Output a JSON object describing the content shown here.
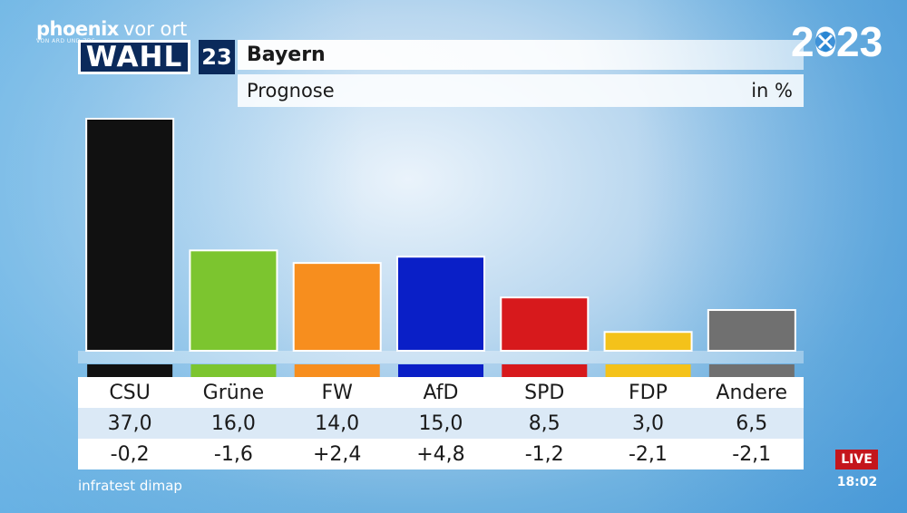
{
  "channel": {
    "brand": "phoenix",
    "brand_suffix": "vor ort",
    "tagline": "VON ARD UND ZDF"
  },
  "badge": {
    "wahl": "WAHL",
    "number": "23"
  },
  "header": {
    "title": "Bayern",
    "subtitle": "Prognose",
    "unit": "in %"
  },
  "year_logo": {
    "text_left": "20",
    "text_right": "23",
    "accent": "#1e7fd1"
  },
  "chart_data": {
    "type": "bar",
    "title": "Bayern",
    "subtitle": "Prognose",
    "unit": "in %",
    "categories": [
      "CSU",
      "Grüne",
      "FW",
      "AfD",
      "SPD",
      "FDP",
      "Andere"
    ],
    "values": [
      37.0,
      16.0,
      14.0,
      15.0,
      8.5,
      3.0,
      6.5
    ],
    "value_labels": [
      "37,0",
      "16,0",
      "14,0",
      "15,0",
      "8,5",
      "3,0",
      "6,5"
    ],
    "diff_labels": [
      "-0,2",
      "-1,6",
      "+2,4",
      "+4,8",
      "-1,2",
      "-2,1",
      "-2,1"
    ],
    "colors": [
      "#111111",
      "#7cc52f",
      "#f78e1e",
      "#0a1fc7",
      "#d7191c",
      "#f4c21a",
      "#707070"
    ],
    "ylim": [
      0,
      37.0
    ],
    "grid": false,
    "legend": "none"
  },
  "source": "infratest dimap",
  "live": {
    "label": "LIVE",
    "time": "18:02"
  }
}
